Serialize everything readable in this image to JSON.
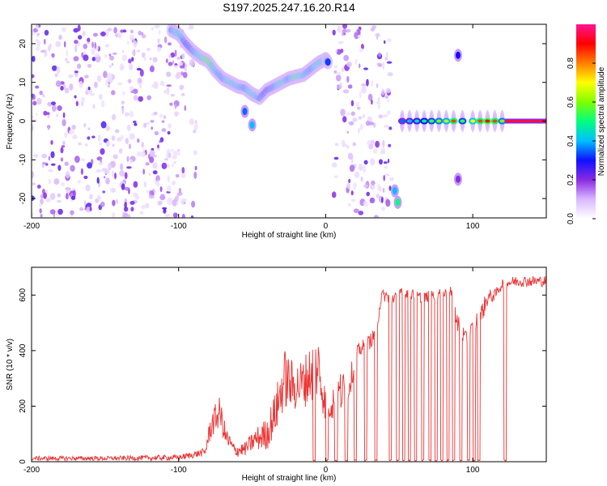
{
  "title": "S197.2025.247.16.20.R14",
  "chart_data": [
    {
      "type": "heatmap",
      "xlabel": "Height of straight line (km)",
      "ylabel": "Frequency (Hz)",
      "xlim": [
        -200,
        150
      ],
      "ylim": [
        -25,
        25
      ],
      "xticks": [
        -200,
        -100,
        0,
        100
      ],
      "xtick_labels": [
        "-200",
        "-100",
        "0",
        "100"
      ],
      "yticks": [
        -20,
        -10,
        0,
        10,
        20
      ],
      "ytick_labels": [
        "-20",
        "-10",
        "0",
        "10",
        "20"
      ],
      "colorbar": {
        "label": "Normalized spectral amplitude",
        "range": [
          0,
          1
        ],
        "ticks": [
          0.0,
          0.2,
          0.4,
          0.6,
          0.8
        ],
        "tick_labels": [
          "0.0",
          "0.2",
          "0.4",
          "0.6",
          "0.8"
        ],
        "colormap": [
          "#ffffff",
          "#d9b8ff",
          "#8a2be2",
          "#1010ff",
          "#00bfff",
          "#00ff7f",
          "#7fff00",
          "#ffff00",
          "#ff7f00",
          "#ff0000",
          "#ff1493"
        ]
      },
      "noise_regions": [
        {
          "x": [
            -200,
            -95
          ],
          "y": [
            -25,
            25
          ],
          "level": 0.18
        },
        {
          "x": [
            -95,
            -88
          ],
          "y": [
            -25,
            25
          ],
          "level": 0.08
        },
        {
          "x": [
            5,
            45
          ],
          "y": [
            -25,
            25
          ],
          "level": 0.16
        }
      ],
      "ridge": {
        "x": [
          -105,
          -100,
          -95,
          -90,
          -85,
          -80,
          -75,
          -70,
          -65,
          -60,
          -55,
          -50,
          -45,
          -40,
          -35,
          -30,
          -25,
          -20,
          -15,
          -10,
          -5,
          0,
          2
        ],
        "freq": [
          23.5,
          22.5,
          20,
          18,
          16.5,
          15.5,
          13,
          11,
          10,
          9,
          8.5,
          7,
          6,
          8,
          9,
          10,
          11,
          11.5,
          12,
          13.5,
          15,
          16,
          15
        ],
        "amp": [
          0.35,
          0.45,
          0.3,
          0.35,
          0.45,
          0.55,
          0.4,
          0.35,
          0.45,
          0.4,
          0.35,
          0.45,
          0.35,
          0.3,
          0.35,
          0.45,
          0.35,
          0.5,
          0.4,
          0.35,
          0.45,
          0.4,
          0.3
        ]
      },
      "secondary_features": [
        {
          "x": -55,
          "freq": 2.5,
          "amp": 0.35
        },
        {
          "x": -50,
          "freq": -1,
          "amp": 0.4
        },
        {
          "x": 47,
          "freq": -18,
          "amp": 0.4
        },
        {
          "x": 49,
          "freq": -21,
          "amp": 0.5
        },
        {
          "x": 90,
          "freq": 17,
          "amp": 0.3
        },
        {
          "x": 90,
          "freq": -15,
          "amp": 0.2
        }
      ],
      "carrier": {
        "freq": 0,
        "points": [
          {
            "x": 52,
            "amp": 0.35
          },
          {
            "x": 57,
            "amp": 0.4
          },
          {
            "x": 62,
            "amp": 0.45
          },
          {
            "x": 67,
            "amp": 0.5
          },
          {
            "x": 72,
            "amp": 0.55
          },
          {
            "x": 77,
            "amp": 0.6
          },
          {
            "x": 82,
            "amp": 0.65
          },
          {
            "x": 87,
            "amp": 0.85
          },
          {
            "x": 93,
            "amp": 0.55
          },
          {
            "x": 100,
            "amp": 0.7
          },
          {
            "x": 105,
            "amp": 0.85
          },
          {
            "x": 110,
            "amp": 0.9
          },
          {
            "x": 115,
            "amp": 0.85
          },
          {
            "x": 120,
            "amp": 0.6
          }
        ],
        "solid_from": 122,
        "solid_to": 150,
        "solid_amp": 0.95
      }
    },
    {
      "type": "line",
      "xlabel": "Height of straight line (km)",
      "ylabel": "SNR (10 * v/v)",
      "xlim": [
        -200,
        150
      ],
      "ylim": [
        0,
        700
      ],
      "xticks": [
        -200,
        -100,
        0,
        100
      ],
      "xtick_labels": [
        "-200",
        "-100",
        "0",
        "100"
      ],
      "yticks": [
        0,
        200,
        400,
        600
      ],
      "ytick_labels": [
        "0",
        "200",
        "400",
        "600"
      ],
      "series": [
        {
          "name": "SNR",
          "color": "#ee3333",
          "envelope": {
            "x": [
              -200,
              -150,
              -100,
              -90,
              -82,
              -78,
              -72,
              -68,
              -62,
              -55,
              -48,
              -40,
              -34,
              -28,
              -22,
              -16,
              -10,
              -5,
              0,
              5,
              10,
              15,
              22,
              28,
              34,
              38,
              45,
              55,
              65,
              75,
              85,
              90,
              95,
              100,
              105,
              110,
              115,
              120,
              130,
              140,
              150
            ],
            "mean": [
              12,
              12,
              15,
              25,
              35,
              130,
              180,
              90,
              40,
              45,
              80,
              100,
              180,
              300,
              270,
              280,
              320,
              340,
              200,
              220,
              250,
              260,
              400,
              420,
              460,
              600,
              590,
              610,
              590,
              600,
              610,
              500,
              440,
              480,
              520,
              590,
              600,
              640,
              650,
              650,
              650
            ],
            "jitter": [
              8,
              8,
              10,
              12,
              15,
              50,
              55,
              40,
              25,
              25,
              40,
              60,
              80,
              110,
              90,
              90,
              110,
              120,
              60,
              70,
              80,
              60,
              25,
              30,
              25,
              20,
              25,
              20,
              20,
              20,
              20,
              40,
              30,
              30,
              40,
              30,
              20,
              20,
              20,
              20,
              20
            ]
          },
          "dropouts_x": [
            -8,
            1,
            7,
            14,
            20,
            27,
            34,
            44,
            49,
            53,
            57,
            61,
            66,
            71,
            75,
            79,
            83,
            87,
            92,
            97,
            101,
            104,
            122
          ]
        }
      ]
    }
  ]
}
